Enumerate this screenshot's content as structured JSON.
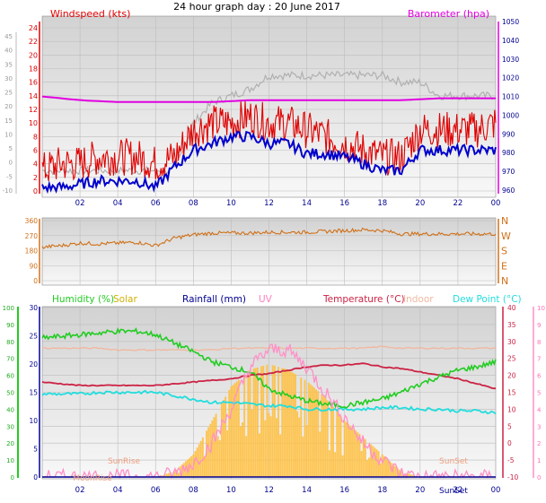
{
  "title": "24 hour graph day : 20 June 2017",
  "colors": {
    "wind_speed": "#e00000",
    "wind_gust": "#b0b0b0",
    "wind_avg": "#0000cc",
    "barometer": "#e000e0",
    "wind_dir": "#d07018",
    "humidity": "#22cc22",
    "solar": "#ffc040",
    "rainfall": "#000090",
    "uv": "#ff90c8",
    "temperature": "#cc2244",
    "indoor": "#f0b8a0",
    "dew_point": "#22dddd",
    "sun_label": "#f0a080"
  },
  "chart_data": [
    {
      "id": "wind",
      "type": "line",
      "ylabel": "Windspeed (kts)",
      "y2label": "Barometer (hpa)",
      "x_ticks": [
        "02",
        "04",
        "06",
        "08",
        "10",
        "12",
        "14",
        "16",
        "18",
        "20",
        "22",
        "00"
      ],
      "y_ticks_right_axis": [
        "24",
        "22",
        "20",
        "18",
        "16",
        "14",
        "12",
        "10",
        "8",
        "6",
        "4",
        "2",
        "0"
      ],
      "y_ticks_left_axis": [
        "45",
        "40",
        "35",
        "30",
        "25",
        "20",
        "15",
        "10",
        "5",
        "0",
        "-5",
        "-10"
      ],
      "y2_ticks": [
        "1050",
        "1040",
        "1030",
        "1020",
        "1010",
        "1000",
        "990",
        "980",
        "970",
        "960"
      ],
      "ylim": [
        0,
        24
      ],
      "y2lim": [
        960,
        1050
      ],
      "hours": [
        0,
        1,
        2,
        3,
        4,
        5,
        6,
        7,
        8,
        9,
        10,
        11,
        12,
        13,
        14,
        15,
        16,
        17,
        18,
        19,
        20,
        21,
        22,
        23,
        24
      ],
      "series": [
        {
          "key": "gust",
          "values": [
            3,
            3,
            3,
            3,
            3,
            3,
            3,
            3,
            10,
            13,
            14,
            15,
            17,
            17,
            17,
            17,
            17,
            17,
            17,
            16,
            16,
            14,
            14,
            14,
            14
          ]
        },
        {
          "key": "speed",
          "values": [
            3,
            4,
            4,
            5,
            5,
            5,
            4,
            5,
            9,
            10,
            10,
            11,
            10,
            10,
            9,
            8,
            7,
            6,
            5,
            5,
            9,
            9,
            9,
            9,
            10
          ]
        },
        {
          "key": "average",
          "values": [
            0.5,
            0.5,
            1,
            1.5,
            1.5,
            1.5,
            0.5,
            3.5,
            6,
            7,
            8,
            8,
            7,
            7,
            5.5,
            5.5,
            5,
            4,
            3,
            3,
            6,
            6,
            6,
            6,
            6
          ]
        },
        {
          "key": "barometer",
          "values": [
            1010,
            1009,
            1008,
            1007.5,
            1007,
            1007,
            1007,
            1007,
            1007,
            1007,
            1007.5,
            1008,
            1008,
            1008,
            1008,
            1008,
            1008,
            1008,
            1008,
            1008,
            1008.5,
            1009,
            1009,
            1009,
            1009
          ]
        }
      ]
    },
    {
      "id": "direction",
      "type": "line",
      "y_ticks": [
        "360",
        "270",
        "180",
        "90",
        "0"
      ],
      "y2_ticks": [
        "N",
        "W",
        "S",
        "E",
        "N"
      ],
      "ylim": [
        0,
        360
      ],
      "hours": [
        0,
        1,
        2,
        3,
        4,
        5,
        6,
        7,
        8,
        9,
        10,
        11,
        12,
        13,
        14,
        15,
        16,
        17,
        18,
        19,
        20,
        21,
        22,
        23,
        24
      ],
      "values": [
        200,
        210,
        225,
        220,
        225,
        230,
        210,
        255,
        275,
        285,
        285,
        285,
        290,
        290,
        290,
        295,
        300,
        305,
        300,
        280,
        280,
        280,
        280,
        280,
        280
      ]
    },
    {
      "id": "temp",
      "type": "line",
      "legend": {
        "humidity": "Humidity (%)",
        "solar": "Solar",
        "rainfall": "Rainfall (mm)",
        "uv": "UV",
        "temperature": "Temperature (°C)",
        "indoor": "Indoor",
        "dew_point": "Dew Point (°C)"
      },
      "annotations": {
        "sunrise": "SunRise",
        "sunset": "SunSet",
        "moonrise": "MoonRise",
        "sunset_tick": "SunSet"
      },
      "x_ticks": [
        "02",
        "04",
        "06",
        "08",
        "10",
        "12",
        "14",
        "16",
        "18",
        "20",
        "22",
        "00"
      ],
      "humidity_ticks": [
        "100",
        "90",
        "80",
        "70",
        "60",
        "50",
        "40",
        "30",
        "20",
        "10",
        "0"
      ],
      "rain_ticks": [
        "30",
        "25",
        "20",
        "15",
        "10",
        "5",
        "0"
      ],
      "temp_ticks": [
        "40",
        "35",
        "30",
        "25",
        "20",
        "15",
        "10",
        "5",
        "0",
        "-5",
        "-10"
      ],
      "uv_ticks": [
        "10",
        "9",
        "8",
        "7",
        "6",
        "5",
        "4",
        "3",
        "2",
        "1",
        "0"
      ],
      "ylim": [
        -10,
        40
      ],
      "hours": [
        0,
        1,
        2,
        3,
        4,
        5,
        6,
        7,
        8,
        9,
        10,
        11,
        12,
        13,
        14,
        15,
        16,
        17,
        18,
        19,
        20,
        21,
        22,
        23,
        24
      ],
      "series": [
        {
          "key": "humidity",
          "values": [
            82,
            83,
            84,
            85,
            86,
            86,
            84,
            79,
            74,
            68,
            65,
            62,
            52,
            48,
            45,
            43,
            42,
            44,
            46,
            50,
            55,
            59,
            63,
            65,
            68
          ]
        },
        {
          "key": "temperature",
          "values": [
            18,
            17.5,
            17,
            17,
            17,
            17,
            17,
            17.5,
            18,
            18.5,
            19,
            20,
            20.5,
            21.5,
            22.5,
            23,
            23,
            23.5,
            22.5,
            22,
            21,
            20,
            19,
            17.5,
            16
          ]
        },
        {
          "key": "indoor",
          "values": [
            28,
            28,
            28,
            28,
            27.5,
            27.5,
            27.5,
            27.5,
            27.5,
            27.5,
            28,
            28,
            28,
            28,
            28,
            28,
            28,
            28,
            28.5,
            28,
            28,
            28,
            28,
            28,
            28
          ]
        },
        {
          "key": "dew_point",
          "values": [
            14.5,
            14.5,
            14.5,
            15,
            15,
            15,
            15,
            14,
            13,
            12,
            12,
            11.5,
            11,
            11,
            10,
            10,
            10,
            10,
            10.5,
            10.5,
            10,
            10,
            9.5,
            9.5,
            9
          ]
        },
        {
          "key": "uv",
          "values": [
            0,
            0,
            0,
            0,
            0,
            0,
            0,
            0.2,
            0.8,
            2,
            4,
            6.5,
            7.5,
            7.5,
            6.5,
            5,
            3.5,
            2,
            1,
            0.2,
            0,
            0,
            0,
            0,
            0
          ]
        },
        {
          "key": "solar",
          "values": [
            0,
            0,
            0,
            0,
            0,
            0,
            0,
            1,
            4,
            10,
            16,
            19,
            20,
            19,
            17,
            14,
            10,
            7,
            4,
            1,
            0,
            0,
            0,
            0,
            0
          ]
        }
      ]
    }
  ]
}
